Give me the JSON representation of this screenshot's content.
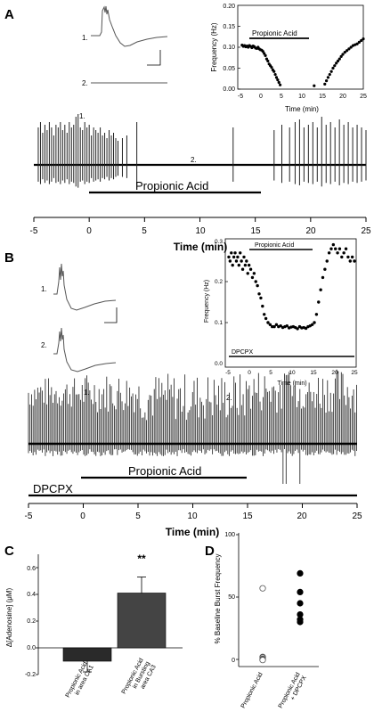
{
  "panels": {
    "A": {
      "letter": "A",
      "trace_labels": [
        "1.",
        "2."
      ],
      "trace_markers": [
        "1.",
        "2."
      ],
      "drug_bar_label": "Propionic Acid",
      "timeline": {
        "ticks": [
          "-5",
          "0",
          "5",
          "10",
          "15",
          "20",
          "25"
        ],
        "xlabel": "Time (min)"
      },
      "inset": {
        "yticks": [
          "0.00",
          "0.05",
          "0.10",
          "0.15",
          "0.20"
        ],
        "xticks": [
          "-5",
          "0",
          "5",
          "10",
          "15",
          "20",
          "25"
        ],
        "ylabel": "Frequency (Hz)",
        "xlabel": "Time (min)",
        "bar_label": "Propionic Acid"
      }
    },
    "B": {
      "letter": "B",
      "trace_labels": [
        "1.",
        "2."
      ],
      "trace_markers": [
        "1.",
        "2."
      ],
      "drug_bar_label": "Propionic Acid",
      "dpcpx_label": "DPCPX",
      "timeline": {
        "ticks": [
          "-5",
          "0",
          "5",
          "10",
          "15",
          "20",
          "25"
        ],
        "xlabel": "Time (min)"
      },
      "inset": {
        "yticks": [
          "0.0",
          "0.1",
          "0.2",
          "0.3"
        ],
        "xticks": [
          "-5",
          "0",
          "5",
          "10",
          "15",
          "20",
          "25"
        ],
        "ylabel": "Frequency (Hz)",
        "xlabel": "Time (min)",
        "bar_label": "Propionic Acid",
        "dpcpx_label": "DPCPX"
      }
    },
    "C": {
      "letter": "C",
      "yticks": [
        "-0.2",
        "0.0",
        "0.2",
        "0.4",
        "0.6"
      ],
      "ylabel": "Δ[Adenosine] (μM)",
      "categories": [
        [
          "Propionic Acid",
          "in  area CA1"
        ],
        [
          "Propionic Acid",
          "in Bursting",
          "area CA3"
        ]
      ],
      "significance": "**"
    },
    "D": {
      "letter": "D",
      "yticks": [
        "0",
        "50",
        "100"
      ],
      "ylabel": "% Baseline Burst Frequency",
      "categories": [
        [
          "Propionic Acid"
        ],
        [
          "Propionic Acid",
          "+ DPCPX"
        ]
      ]
    }
  },
  "chart_data": [
    {
      "panel": "A-inset",
      "type": "scatter",
      "xlabel": "Time (min)",
      "ylabel": "Frequency (Hz)",
      "xlim": [
        -5,
        25
      ],
      "ylim": [
        0,
        0.2
      ],
      "drug_window": [
        0,
        12
      ],
      "series": [
        {
          "x": [
            -4.6,
            -4.3,
            -4.0,
            -3.7,
            -3.4,
            -3.1,
            -2.8,
            -2.5,
            -2.2,
            -1.9,
            -1.6,
            -1.3,
            -1.0,
            -0.7,
            -0.4,
            -0.1,
            0.2,
            0.5,
            0.8,
            1.1,
            1.4,
            1.7,
            2.0,
            2.3,
            2.6,
            2.9,
            3.2,
            3.5,
            3.8,
            4.1,
            4.4,
            4.7,
            13.0,
            15.6,
            16.0,
            16.4,
            16.8,
            17.2,
            17.6,
            18.0,
            18.4,
            18.8,
            19.2,
            19.6,
            20.0,
            20.5,
            21.0,
            21.5,
            22.0,
            22.5,
            23.0,
            23.5,
            24.0,
            24.5,
            25.0
          ],
          "y": [
            0.105,
            0.102,
            0.104,
            0.101,
            0.103,
            0.1,
            0.104,
            0.102,
            0.099,
            0.103,
            0.101,
            0.098,
            0.097,
            0.1,
            0.096,
            0.094,
            0.093,
            0.09,
            0.085,
            0.08,
            0.072,
            0.067,
            0.06,
            0.056,
            0.052,
            0.046,
            0.042,
            0.035,
            0.028,
            0.022,
            0.016,
            0.01,
            0.008,
            0.012,
            0.02,
            0.028,
            0.035,
            0.042,
            0.05,
            0.056,
            0.062,
            0.067,
            0.072,
            0.078,
            0.083,
            0.088,
            0.092,
            0.096,
            0.1,
            0.104,
            0.106,
            0.108,
            0.112,
            0.116,
            0.12
          ]
        }
      ]
    },
    {
      "panel": "B-inset",
      "type": "scatter",
      "xlabel": "Time (min)",
      "ylabel": "Frequency (Hz)",
      "xlim": [
        -5,
        25
      ],
      "ylim": [
        0,
        0.3
      ],
      "drug_window": [
        0,
        15
      ],
      "dpcpx_window": [
        -5,
        25
      ],
      "series": [
        {
          "x": [
            -4.8,
            -4.5,
            -4.2,
            -3.9,
            -3.6,
            -3.3,
            -3.0,
            -2.7,
            -2.4,
            -2.1,
            -1.8,
            -1.5,
            -1.2,
            -0.9,
            -0.6,
            -0.3,
            0.0,
            0.4,
            0.8,
            1.2,
            1.6,
            2.0,
            2.4,
            2.8,
            3.2,
            3.6,
            4.0,
            4.5,
            5.0,
            5.5,
            6.0,
            6.5,
            7.0,
            7.5,
            8.0,
            8.5,
            9.0,
            9.5,
            10.0,
            10.5,
            11.0,
            11.5,
            12.0,
            12.5,
            13.0,
            13.5,
            14.0,
            14.5,
            15.0,
            15.5,
            16.0,
            16.5,
            17.0,
            17.5,
            18.0,
            18.5,
            19.0,
            19.5,
            20.0,
            20.5,
            21.0,
            21.5,
            22.0,
            22.5,
            23.0,
            23.5,
            24.0,
            24.5,
            25.0
          ],
          "y": [
            0.26,
            0.25,
            0.27,
            0.24,
            0.26,
            0.27,
            0.25,
            0.26,
            0.24,
            0.27,
            0.25,
            0.23,
            0.26,
            0.24,
            0.25,
            0.22,
            0.24,
            0.23,
            0.21,
            0.22,
            0.2,
            0.19,
            0.17,
            0.16,
            0.14,
            0.12,
            0.11,
            0.1,
            0.095,
            0.09,
            0.09,
            0.095,
            0.09,
            0.092,
            0.088,
            0.09,
            0.092,
            0.087,
            0.089,
            0.09,
            0.088,
            0.085,
            0.09,
            0.087,
            0.088,
            0.086,
            0.09,
            0.092,
            0.095,
            0.1,
            0.12,
            0.15,
            0.18,
            0.21,
            0.23,
            0.25,
            0.27,
            0.28,
            0.29,
            0.28,
            0.27,
            0.28,
            0.26,
            0.27,
            0.28,
            0.26,
            0.25,
            0.26,
            0.25
          ]
        }
      ]
    },
    {
      "panel": "A-timeline",
      "type": "line",
      "xlabel": "Time (min)",
      "xlim": [
        -5,
        25
      ],
      "drug_window": [
        0,
        15.3
      ],
      "trace_marker_times": [
        -1.0,
        9.3
      ],
      "event_times": [
        -4.6,
        -4.4,
        -4.2,
        -4.0,
        -3.8,
        -3.6,
        -3.4,
        -3.2,
        -3.0,
        -2.8,
        -2.6,
        -2.4,
        -2.2,
        -2.0,
        -1.8,
        -1.6,
        -1.4,
        -1.2,
        -1.0,
        -0.8,
        -0.6,
        -0.4,
        -0.2,
        0.0,
        0.2,
        0.4,
        0.6,
        0.8,
        1.0,
        1.2,
        1.4,
        1.6,
        1.8,
        2.0,
        2.2,
        2.4,
        2.6,
        3.0,
        3.4,
        4.3,
        13.0,
        16.7,
        17.4,
        18.1,
        18.6,
        19.0,
        19.4,
        19.8,
        20.2,
        20.6,
        21.0,
        21.4,
        21.8,
        22.2,
        22.6,
        23.0,
        23.4,
        23.8,
        24.2,
        24.6,
        25.0
      ],
      "event_heights": [
        0.7,
        0.8,
        0.6,
        0.75,
        0.65,
        0.8,
        0.7,
        0.55,
        0.75,
        0.7,
        0.8,
        0.65,
        0.75,
        0.6,
        0.8,
        0.7,
        0.75,
        0.9,
        0.95,
        0.7,
        0.65,
        0.8,
        0.7,
        0.75,
        0.55,
        0.7,
        0.65,
        0.6,
        0.7,
        0.55,
        0.6,
        0.5,
        0.65,
        0.55,
        0.6,
        0.5,
        0.45,
        0.5,
        0.55,
        0.8,
        0.7,
        0.65,
        0.75,
        0.7,
        0.8,
        0.85,
        0.7,
        0.75,
        0.8,
        0.7,
        0.9,
        0.75,
        0.8,
        0.7,
        0.85,
        0.75,
        0.8,
        0.7,
        0.75,
        0.7,
        0.65
      ]
    },
    {
      "panel": "B-timeline",
      "type": "line",
      "xlabel": "Time (min)",
      "xlim": [
        -5,
        25
      ],
      "drug_window": [
        0,
        15
      ],
      "dpcpx_window": [
        -5,
        25
      ],
      "trace_marker_times": [
        0.3,
        12.4
      ]
    },
    {
      "panel": "C",
      "type": "bar",
      "ylabel": "Δ[Adenosine] (μM)",
      "ylim": [
        -0.2,
        0.7
      ],
      "categories": [
        "Propionic Acid in area CA1",
        "Propionic Acid in Bursting area CA3"
      ],
      "values": [
        -0.1,
        0.41
      ],
      "errors": [
        0.08,
        0.12
      ],
      "significance": [
        "",
        "**"
      ]
    },
    {
      "panel": "D",
      "type": "scatter",
      "ylabel": "% Baseline Burst Frequency",
      "ylim": [
        -5,
        105
      ],
      "categories": [
        "Propionic Acid",
        "Propionic Acid + DPCPX"
      ],
      "series": [
        {
          "category": "Propionic Acid",
          "filled": false,
          "values": [
            57,
            2,
            1.5,
            0.5,
            0,
            -0.5
          ]
        },
        {
          "category": "Propionic Acid + DPCPX",
          "filled": true,
          "values": [
            69,
            54,
            45,
            36,
            32,
            30
          ]
        }
      ]
    }
  ]
}
